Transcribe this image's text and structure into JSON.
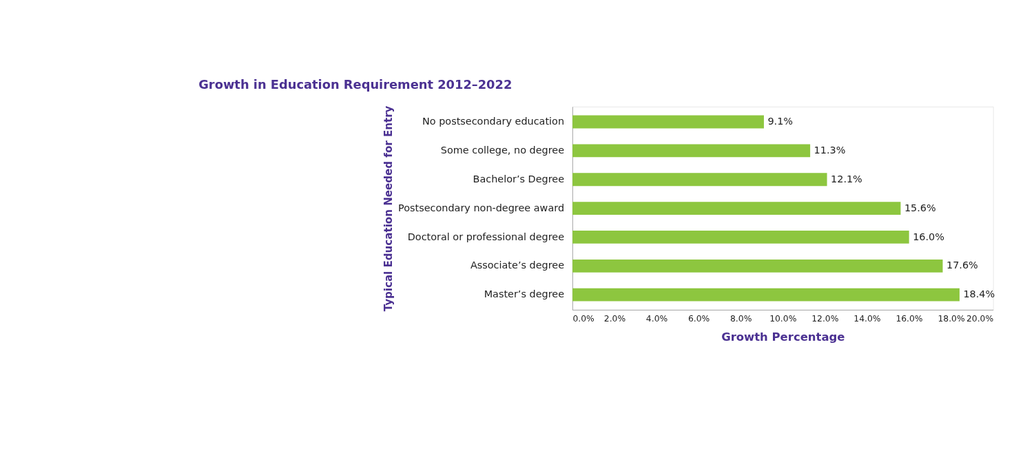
{
  "chart_data": {
    "type": "bar",
    "orientation": "horizontal",
    "title": "Growth in Education Requirement 2012–2022",
    "xlabel": "Growth Percentage",
    "ylabel": "Typical Education Needed for Entry",
    "categories": [
      "No postsecondary education",
      "Some college, no degree",
      "Bachelor’s Degree",
      "Postsecondary non-degree award",
      "Doctoral or professional degree",
      "Associate’s degree",
      "Master’s degree"
    ],
    "values": [
      9.1,
      11.3,
      12.1,
      15.6,
      16.0,
      17.6,
      18.4
    ],
    "value_labels": [
      "9.1%",
      "11.3%",
      "12.1%",
      "15.6%",
      "16.0%",
      "17.6%",
      "18.4%"
    ],
    "color": "#8dc63f",
    "xlim": [
      0,
      20
    ],
    "xticks": [
      {
        "value": 0,
        "label": "0.0%"
      },
      {
        "value": 2,
        "label": "2.0%"
      },
      {
        "value": 4,
        "label": "4.0%"
      },
      {
        "value": 6,
        "label": "6.0%"
      },
      {
        "value": 8,
        "label": "8.0%"
      },
      {
        "value": 10,
        "label": "10.0%"
      },
      {
        "value": 12,
        "label": "12.0%"
      },
      {
        "value": 14,
        "label": "14.0%"
      },
      {
        "value": 16,
        "label": "16.0%"
      },
      {
        "value": 18,
        "label": "18.0%"
      },
      {
        "value": 20,
        "label": "20.0%"
      }
    ],
    "grid": false,
    "legend": false
  }
}
